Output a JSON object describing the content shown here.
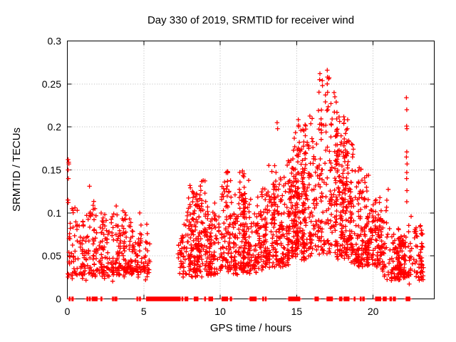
{
  "page": {
    "background": "#ffffff"
  },
  "chart_data": {
    "type": "scatter",
    "title": "Day 330 of 2019, SRMTID for receiver wind",
    "xlabel": "GPS time / hours",
    "ylabel": "SRMTID / TECUs",
    "xlim": [
      0,
      24
    ],
    "ylim": [
      0,
      0.3
    ],
    "xticks": [
      {
        "v": 0,
        "label": "0"
      },
      {
        "v": 5,
        "label": "5"
      },
      {
        "v": 10,
        "label": "10"
      },
      {
        "v": 15,
        "label": "15"
      },
      {
        "v": 20,
        "label": "20"
      }
    ],
    "yticks": [
      {
        "v": 0,
        "label": "0"
      },
      {
        "v": 0.05,
        "label": "0.05"
      },
      {
        "v": 0.1,
        "label": "0.1"
      },
      {
        "v": 0.15,
        "label": "0.15"
      },
      {
        "v": 0.2,
        "label": "0.2"
      },
      {
        "v": 0.25,
        "label": "0.25"
      },
      {
        "v": 0.3,
        "label": "0.3"
      }
    ],
    "grid": true,
    "legend": "none",
    "marker": "plus",
    "marker_color": "#ff0000",
    "grid_color": "#b8b8b8",
    "axis_color": "#000000",
    "seed": 330,
    "clusters": [
      {
        "x0": 0.05,
        "x1": 5.35,
        "n": 430,
        "cols": 26,
        "xspread": 0.09,
        "shape": 1.7,
        "ybot": 0.028,
        "tops": [
          [
            0.05,
            0.115
          ],
          [
            0.8,
            0.105
          ],
          [
            1.4,
            0.125
          ],
          [
            2.0,
            0.11
          ],
          [
            2.6,
            0.105
          ],
          [
            3.2,
            0.115
          ],
          [
            3.8,
            0.1
          ],
          [
            4.4,
            0.105
          ],
          [
            5.35,
            0.088
          ]
        ]
      },
      {
        "x0": 7.25,
        "x1": 10.15,
        "n": 330,
        "cols": 17,
        "xspread": 0.09,
        "shape": 1.5,
        "ybot": 0.03,
        "tops": [
          [
            7.25,
            0.065
          ],
          [
            7.6,
            0.105
          ],
          [
            8.0,
            0.138
          ],
          [
            8.5,
            0.148
          ],
          [
            8.9,
            0.132
          ],
          [
            9.3,
            0.122
          ],
          [
            9.7,
            0.126
          ],
          [
            10.15,
            0.132
          ]
        ]
      },
      {
        "x0": 10.2,
        "x1": 12.35,
        "n": 300,
        "cols": 15,
        "xspread": 0.08,
        "shape": 1.5,
        "ybot": 0.032,
        "tops": [
          [
            10.2,
            0.146
          ],
          [
            10.7,
            0.156
          ],
          [
            11.1,
            0.142
          ],
          [
            11.5,
            0.158
          ],
          [
            11.9,
            0.132
          ],
          [
            12.35,
            0.122
          ]
        ]
      },
      {
        "x0": 12.4,
        "x1": 14.65,
        "n": 280,
        "cols": 14,
        "xspread": 0.08,
        "shape": 1.4,
        "ybot": 0.04,
        "tops": [
          [
            12.4,
            0.128
          ],
          [
            12.9,
            0.148
          ],
          [
            13.3,
            0.158
          ],
          [
            13.7,
            0.192
          ],
          [
            14.0,
            0.168
          ],
          [
            14.3,
            0.178
          ],
          [
            14.65,
            0.188
          ]
        ]
      },
      {
        "x0": 14.7,
        "x1": 16.35,
        "n": 300,
        "cols": 12,
        "xspread": 0.08,
        "shape": 1.25,
        "ybot": 0.05,
        "tops": [
          [
            14.7,
            0.19
          ],
          [
            15.1,
            0.2
          ],
          [
            15.5,
            0.19
          ],
          [
            15.9,
            0.208
          ],
          [
            16.35,
            0.218
          ]
        ]
      },
      {
        "x0": 16.35,
        "x1": 18.65,
        "n": 360,
        "cols": 15,
        "xspread": 0.08,
        "shape": 1.3,
        "ybot": 0.05,
        "tops": [
          [
            16.35,
            0.238
          ],
          [
            16.55,
            0.258
          ],
          [
            16.8,
            0.228
          ],
          [
            17.0,
            0.26
          ],
          [
            17.3,
            0.238
          ],
          [
            17.6,
            0.232
          ],
          [
            17.9,
            0.218
          ],
          [
            18.2,
            0.208
          ],
          [
            18.65,
            0.188
          ]
        ]
      },
      {
        "x0": 18.65,
        "x1": 20.6,
        "n": 250,
        "cols": 13,
        "xspread": 0.08,
        "shape": 1.7,
        "ybot": 0.04,
        "tops": [
          [
            18.65,
            0.178
          ],
          [
            19.0,
            0.168
          ],
          [
            19.3,
            0.158
          ],
          [
            19.6,
            0.158
          ],
          [
            19.9,
            0.142
          ],
          [
            20.2,
            0.132
          ],
          [
            20.6,
            0.118
          ]
        ]
      },
      {
        "x0": 20.6,
        "x1": 23.25,
        "n": 240,
        "cols": 14,
        "xspread": 0.08,
        "shape": 1.6,
        "ybot": 0.026,
        "tops": [
          [
            20.6,
            0.118
          ],
          [
            20.9,
            0.128
          ],
          [
            21.2,
            0.1
          ],
          [
            21.6,
            0.095
          ],
          [
            22.0,
            0.09
          ],
          [
            22.4,
            0.1
          ],
          [
            22.7,
            0.104
          ],
          [
            23.0,
            0.09
          ],
          [
            23.25,
            0.08
          ]
        ]
      }
    ],
    "highlight_points": [
      [
        0.05,
        0.162
      ],
      [
        0.09,
        0.159
      ],
      [
        0.1,
        0.157
      ],
      [
        0.05,
        0.15
      ],
      [
        0.07,
        0.14
      ],
      [
        0.04,
        0.115
      ],
      [
        0.06,
        0.112
      ],
      [
        0.5,
        0.106
      ],
      [
        0.65,
        0.103
      ],
      [
        1.45,
        0.131
      ],
      [
        13.72,
        0.205
      ],
      [
        13.75,
        0.198
      ],
      [
        16.52,
        0.262
      ],
      [
        16.5,
        0.255
      ],
      [
        17.0,
        0.266
      ],
      [
        17.02,
        0.258
      ],
      [
        17.0,
        0.25
      ],
      [
        17.45,
        0.24
      ],
      [
        17.5,
        0.235
      ],
      [
        22.18,
        0.234
      ],
      [
        22.2,
        0.22
      ],
      [
        22.19,
        0.201
      ],
      [
        22.21,
        0.198
      ],
      [
        22.2,
        0.171
      ],
      [
        22.18,
        0.165
      ],
      [
        22.22,
        0.157
      ],
      [
        22.2,
        0.147
      ],
      [
        22.19,
        0.14
      ],
      [
        22.21,
        0.126
      ],
      [
        22.2,
        0.113
      ]
    ],
    "zero_segments": [
      [
        0.12,
        0.18
      ],
      [
        0.3,
        0.38
      ],
      [
        1.28,
        1.34
      ],
      [
        1.44,
        1.5
      ],
      [
        1.62,
        1.95
      ],
      [
        2.2,
        2.26
      ],
      [
        2.95,
        3.02
      ],
      [
        3.1,
        3.24
      ],
      [
        4.55,
        4.62
      ],
      [
        4.72,
        4.78
      ],
      [
        5.18,
        7.38
      ],
      [
        7.5,
        7.56
      ],
      [
        7.7,
        7.88
      ],
      [
        8.3,
        8.54
      ],
      [
        8.98,
        9.04
      ],
      [
        9.26,
        9.5
      ],
      [
        10.12,
        10.48
      ],
      [
        10.66,
        10.74
      ],
      [
        11.95,
        12.35
      ],
      [
        12.78,
        12.84
      ],
      [
        12.95,
        13.0
      ],
      [
        14.48,
        15.2
      ],
      [
        16.2,
        16.42
      ],
      [
        16.98,
        17.34
      ],
      [
        17.8,
        17.96
      ],
      [
        18.1,
        18.42
      ],
      [
        18.76,
        18.82
      ],
      [
        19.16,
        19.22
      ],
      [
        19.32,
        19.42
      ],
      [
        20.16,
        20.5
      ],
      [
        20.66,
        20.86
      ],
      [
        21.1,
        21.2
      ],
      [
        21.32,
        21.46
      ],
      [
        22.16,
        22.28
      ],
      [
        22.34,
        22.4
      ]
    ]
  }
}
